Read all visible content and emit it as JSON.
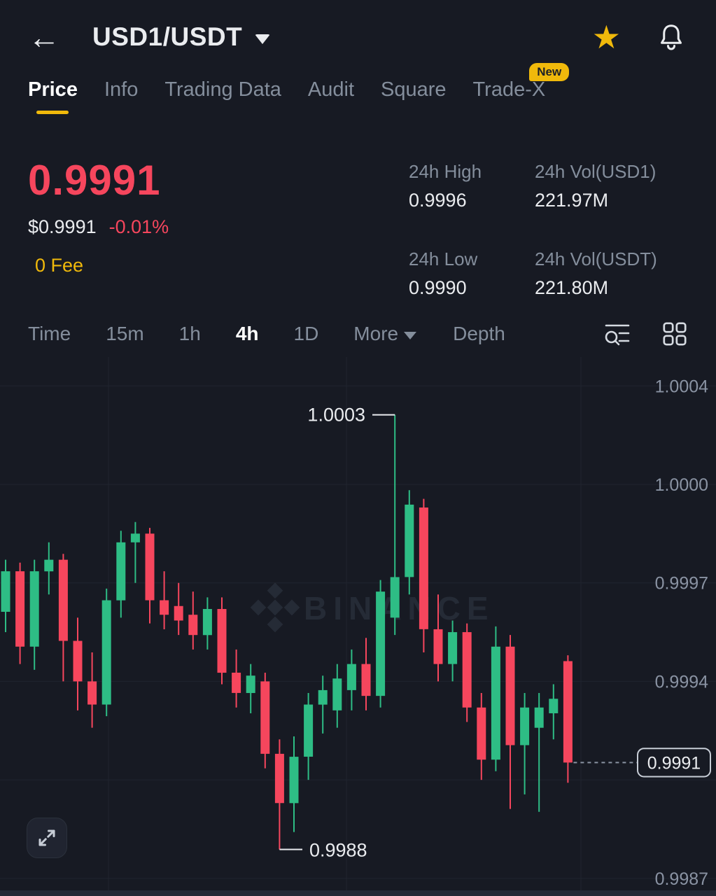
{
  "header": {
    "title": "USD1/USDT"
  },
  "tabs": [
    {
      "label": "Price",
      "active": true
    },
    {
      "label": "Info"
    },
    {
      "label": "Trading Data"
    },
    {
      "label": "Audit"
    },
    {
      "label": "Square"
    },
    {
      "label": "Trade-X",
      "badge": "New"
    }
  ],
  "ticker": {
    "last_price": "0.9991",
    "fiat_price": "$0.9991",
    "change_pct": "-0.01%",
    "fee": "0 Fee",
    "stats": [
      {
        "label": "24h High",
        "value": "0.9996"
      },
      {
        "label": "24h Vol(USD1)",
        "value": "221.97M"
      },
      {
        "label": "24h Low",
        "value": "0.9990"
      },
      {
        "label": "24h Vol(USDT)",
        "value": "221.80M"
      }
    ]
  },
  "timeframes": {
    "items": [
      "Time",
      "15m",
      "1h",
      "4h",
      "1D"
    ],
    "selected": "4h",
    "more": "More",
    "depth": "Depth"
  },
  "chart_data": {
    "type": "candlestick",
    "interval": "4h",
    "watermark": "BINANCE",
    "up_color": "#2EBD85",
    "down_color": "#F6465D",
    "price_range": [
      0.9987,
      1.0004
    ],
    "y_axis_labels": [
      "1.0004",
      "1.0000",
      "0.9997",
      "0.9994",
      "0.9987"
    ],
    "current_price": "0.9991",
    "high_annotation": "1.0003",
    "low_annotation": "0.9988",
    "candles": [
      [
        0.99962,
        0.9998,
        0.99955,
        0.99976
      ],
      [
        0.99976,
        0.99979,
        0.99944,
        0.9995
      ],
      [
        0.9995,
        0.9998,
        0.99942,
        0.99976
      ],
      [
        0.99976,
        0.99986,
        0.99968,
        0.9998
      ],
      [
        0.9998,
        0.99982,
        0.99938,
        0.99952
      ],
      [
        0.99952,
        0.9996,
        0.99928,
        0.99938
      ],
      [
        0.99938,
        0.99948,
        0.99922,
        0.9993
      ],
      [
        0.9993,
        0.9997,
        0.99926,
        0.99966
      ],
      [
        0.99966,
        0.9999,
        0.9996,
        0.99986
      ],
      [
        0.99986,
        0.99993,
        0.99972,
        0.99989
      ],
      [
        0.99989,
        0.99991,
        0.99958,
        0.99966
      ],
      [
        0.99966,
        0.99976,
        0.99956,
        0.99961
      ],
      [
        0.99964,
        0.99972,
        0.99954,
        0.99959
      ],
      [
        0.99961,
        0.99969,
        0.99949,
        0.99954
      ],
      [
        0.99954,
        0.99967,
        0.99949,
        0.99963
      ],
      [
        0.99963,
        0.99967,
        0.99937,
        0.99941
      ],
      [
        0.99941,
        0.99949,
        0.99929,
        0.99934
      ],
      [
        0.99934,
        0.99944,
        0.99927,
        0.9994
      ],
      [
        0.99938,
        0.99941,
        0.99908,
        0.99913
      ],
      [
        0.99913,
        0.99918,
        0.9988,
        0.99896
      ],
      [
        0.99896,
        0.99919,
        0.99886,
        0.99912
      ],
      [
        0.99912,
        0.99934,
        0.99904,
        0.9993
      ],
      [
        0.9993,
        0.9994,
        0.9992,
        0.99935
      ],
      [
        0.99928,
        0.99944,
        0.99922,
        0.99939
      ],
      [
        0.99935,
        0.99949,
        0.99928,
        0.99944
      ],
      [
        0.99944,
        0.99953,
        0.99928,
        0.99933
      ],
      [
        0.99933,
        0.99973,
        0.99929,
        0.99969
      ],
      [
        0.9996,
        1.0003,
        0.99954,
        0.99974
      ],
      [
        0.99974,
        1.00004,
        0.99968,
        0.99999
      ],
      [
        0.99998,
        1.00001,
        0.99948,
        0.99956
      ],
      [
        0.99956,
        0.99968,
        0.99938,
        0.99944
      ],
      [
        0.99944,
        0.99959,
        0.99938,
        0.99955
      ],
      [
        0.99955,
        0.99958,
        0.99924,
        0.99929
      ],
      [
        0.99929,
        0.99934,
        0.99904,
        0.99911
      ],
      [
        0.99911,
        0.99957,
        0.99907,
        0.9995
      ],
      [
        0.9995,
        0.99954,
        0.99894,
        0.99916
      ],
      [
        0.99916,
        0.99934,
        0.99899,
        0.99929
      ],
      [
        0.99922,
        0.99934,
        0.99893,
        0.99929
      ],
      [
        0.99927,
        0.99937,
        0.99918,
        0.99932
      ],
      [
        0.99945,
        0.99947,
        0.99903,
        0.9991
      ]
    ]
  }
}
